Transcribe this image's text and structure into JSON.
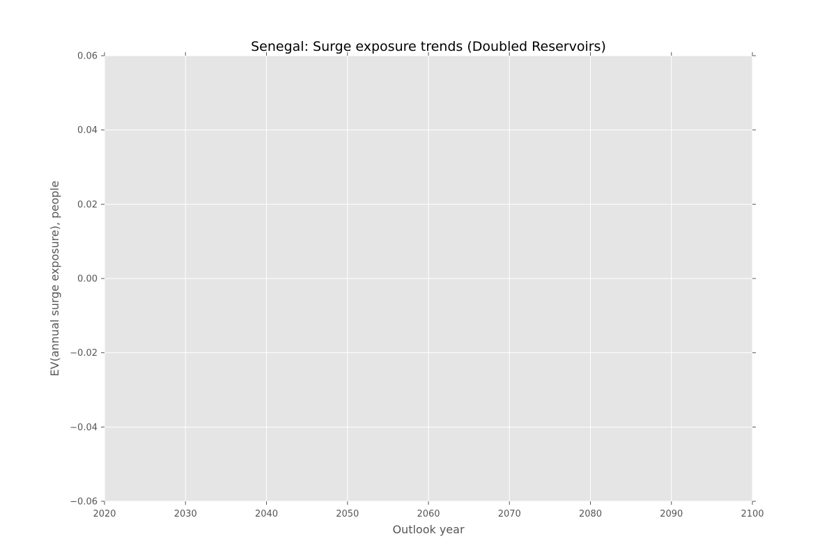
{
  "chart_data": {
    "type": "line",
    "title": "Senegal: Surge exposure trends (Doubled Reservoirs)",
    "xlabel": "Outlook year",
    "ylabel": "EV(annual surge exposure), people",
    "xlim": [
      2020,
      2100
    ],
    "ylim": [
      -0.06,
      0.06
    ],
    "x_ticks": [
      2020,
      2030,
      2040,
      2050,
      2060,
      2070,
      2080,
      2090,
      2100
    ],
    "x_tick_labels": [
      "2020",
      "2030",
      "2040",
      "2050",
      "2060",
      "2070",
      "2080",
      "2090",
      "2100"
    ],
    "y_ticks": [
      0.06,
      0.04,
      0.02,
      0.0,
      -0.02,
      -0.04,
      -0.06
    ],
    "y_tick_labels": [
      "0.06",
      "0.04",
      "0.02",
      "0.00",
      "−0.02",
      "−0.04",
      "−0.06"
    ],
    "series": [],
    "grid": true,
    "colors": {
      "plot_background": "#e5e5e5",
      "grid": "#ffffff",
      "text": "#555555",
      "title": "#000000"
    }
  }
}
